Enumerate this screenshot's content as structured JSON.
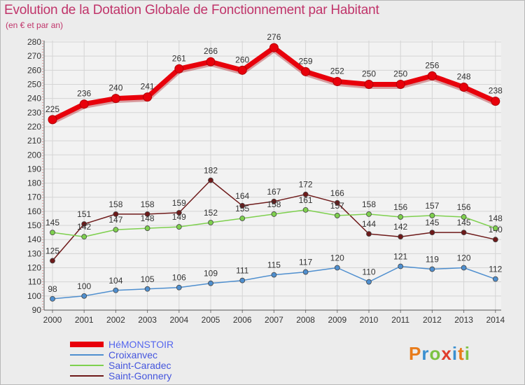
{
  "chart_data": {
    "type": "line",
    "title": "Evolution de la Dotation Globale de Fonctionnement par Habitant",
    "subtitle": "(en € et par an)",
    "xlabel": "",
    "ylabel": "",
    "ylim": [
      90,
      280
    ],
    "yticks": [
      90,
      100,
      110,
      120,
      130,
      140,
      150,
      160,
      170,
      180,
      190,
      200,
      210,
      220,
      230,
      240,
      250,
      260,
      270,
      280
    ],
    "x": [
      "2000",
      "2001",
      "2002",
      "2003",
      "2004",
      "2005",
      "2006",
      "2007",
      "2008",
      "2009",
      "2010",
      "2011",
      "2012",
      "2013",
      "2014"
    ],
    "grid": true,
    "legend_position": "bottom-left",
    "series": [
      {
        "name": "HéMONSTOIR",
        "color": "#e8000b",
        "values": [
          225,
          236,
          240,
          241,
          261,
          266,
          260,
          276,
          259,
          252,
          250,
          250,
          256,
          248,
          238
        ]
      },
      {
        "name": "Croixanvec",
        "color": "#4f8fcf",
        "values": [
          98,
          100,
          104,
          105,
          106,
          109,
          111,
          115,
          117,
          120,
          110,
          121,
          119,
          120,
          112
        ]
      },
      {
        "name": "Saint-Caradec",
        "color": "#7ed04e",
        "values": [
          145,
          142,
          147,
          148,
          149,
          152,
          155,
          158,
          161,
          157,
          158,
          156,
          157,
          156,
          148
        ]
      },
      {
        "name": "Saint-Gonnery",
        "color": "#6e1a1a",
        "values": [
          125,
          151,
          158,
          158,
          159,
          182,
          164,
          167,
          172,
          166,
          144,
          142,
          145,
          145,
          140
        ]
      }
    ]
  },
  "logo": {
    "text": "Proxiti"
  }
}
